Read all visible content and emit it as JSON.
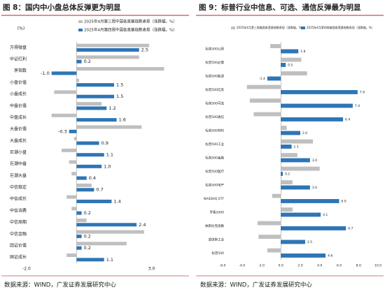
{
  "chart_data": [
    {
      "type": "hbar",
      "title": "图 8：国内中小盘总体反弹更为明显",
      "unit_label": "(%)",
      "source": "数据来源：WIND，广发证券发展研究中心",
      "categories": [
        "万得微盘",
        "中证红利",
        "茅指数",
        "小盘价值",
        "小盘成长",
        "中盘价值",
        "中盘成长",
        "大盘价值",
        "大盘成长",
        "巨潮小盘",
        "巨潮中盘",
        "巨潮大盘",
        "中信稳定",
        "中信成长",
        "中信消费",
        "中信周期",
        "中信金融",
        "国证价值",
        "国证成长"
      ],
      "series": [
        {
          "name": "2025年4月第三周中国各宽基指数表现（涨跌幅，%）",
          "color": "#bfbfbf",
          "values": [
            2.9,
            2.5,
            3.5,
            0.1,
            -0.9,
            1.0,
            -1.0,
            2.6,
            -0.1,
            -0.6,
            -0.3,
            -0.2,
            0.6,
            -0.4,
            -0.2,
            0.4,
            2.7,
            2.0,
            -0.4
          ]
        },
        {
          "name": "2025年4月第四周中国各宽基指数表现（涨跌幅，%）",
          "color": "#2e75b6",
          "values": [
            2.5,
            0.2,
            -1.0,
            1.5,
            1.5,
            1.2,
            1.6,
            -0.3,
            0.9,
            1.1,
            1.0,
            0.4,
            0.7,
            1.4,
            0.2,
            2.4,
            0.2,
            0.2,
            1.1
          ],
          "value_labels": [
            "2.5",
            "0.2",
            "-1.0",
            "1.5",
            "1.5",
            "1.2",
            "1.6",
            "-0.3",
            "0.9",
            "1.1",
            "1.0",
            "0.4",
            "0.7",
            "1.4",
            "0.2",
            "2.4",
            "0.2",
            "0.2",
            "1.1"
          ]
        }
      ],
      "xlim": [
        -2.0,
        3.6
      ],
      "xticks": [
        {
          "value": -2.0,
          "label": "-2.0"
        },
        {
          "value": 3.0,
          "label": "3.0"
        }
      ]
    },
    {
      "type": "hbar",
      "title": "图 9：标普行业中信息、可选、通信反弹最为明显",
      "source": "数据来源：WIND，广发证券发展研究中心",
      "categories": [
        "标普500公用",
        "标普500必需",
        "标普500能源",
        "标普500信息",
        "标普500可选",
        "标普500通信",
        "标普500材料",
        "标普500工业",
        "标普500金融",
        "标普500医疗",
        "标普500地产",
        "NASDAQ ETF",
        "罗素2000",
        "纳斯达克指数",
        "道琼斯工业",
        "标普500"
      ],
      "series": [
        {
          "name": "2025年4月第三周美国各宽基指数表现（涨跌幅，%）",
          "color": "#bfbfbf",
          "values": [
            -1.1,
            2.1,
            2.7,
            -3.5,
            -3.2,
            -2.8,
            0.6,
            3.3,
            1.7,
            4.0,
            1.2,
            -0.9,
            1.2,
            -2.4,
            -2.3,
            -1.4
          ]
        },
        {
          "name": "2025年4月第四周美国各宽基指数表现（涨跌幅，%）",
          "color": "#2e75b6",
          "values": [
            1.8,
            0.5,
            -1.4,
            7.9,
            7.4,
            6.4,
            2.0,
            1.1,
            3.0,
            0.2,
            3.0,
            6.0,
            4.1,
            6.7,
            2.5,
            4.6
          ],
          "value_labels": [
            "1.8",
            "0.5",
            "-1.4",
            "7.9",
            "7.4",
            "6.4",
            "2.0",
            "1.1",
            "3.0",
            "0.2",
            "3.0",
            "6.0",
            "4.1",
            "6.7",
            "2.5",
            "4.6"
          ]
        }
      ],
      "xlim": [
        -6.0,
        10.0
      ],
      "xticks": [
        {
          "value": -6.0,
          "label": "-6.0"
        },
        {
          "value": -4.0,
          "label": "-4.0"
        },
        {
          "value": -2.0,
          "label": "-2.0"
        },
        {
          "value": 0,
          "label": "0.0"
        },
        {
          "value": 2.0,
          "label": "2.0"
        },
        {
          "value": 4.0,
          "label": "4.0"
        },
        {
          "value": 6.0,
          "label": "6.0"
        },
        {
          "value": 8.0,
          "label": "8.0"
        },
        {
          "value": 10.0,
          "label": "10.0"
        }
      ]
    }
  ]
}
